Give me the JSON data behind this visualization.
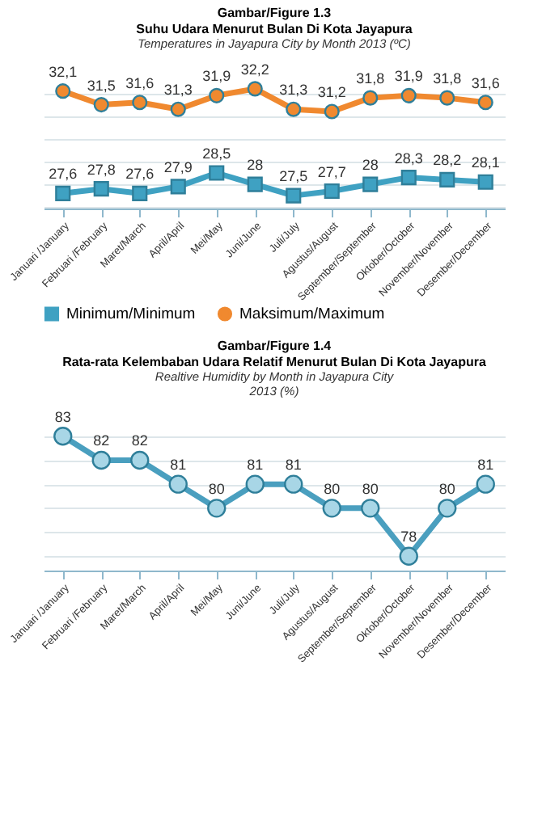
{
  "chart_data": [
    {
      "type": "line",
      "title": "Gambar/Figure 1.3",
      "subtitle": "Suhu Udara Menurut Bulan Di Kota Jayapura",
      "annotations": [
        "Temperatures in  Jayapura City by Month 2013 (ºC)"
      ],
      "categories": [
        "Januari /January",
        "Februari /February",
        "Maret/March",
        "April/April",
        "Mei/May",
        "Juni/June",
        "Juli/July",
        "Agustus/August",
        "September/September",
        "Oktober/October",
        "November/November",
        "Desember/December"
      ],
      "series": [
        {
          "name": "Minimum/Minimum",
          "color": "#3fa1c2",
          "marker": "square",
          "values": [
            27.6,
            27.8,
            27.6,
            27.9,
            28.5,
            28,
            27.5,
            27.7,
            28,
            28.3,
            28.2,
            28.1
          ],
          "value_labels": [
            "27,6",
            "27,8",
            "27,6",
            "27,9",
            "28,5",
            "28",
            "27,5",
            "27,7",
            "28",
            "28,3",
            "28,2",
            "28,1"
          ]
        },
        {
          "name": "Maksimum/Maximum",
          "color": "#f0892f",
          "marker": "circle",
          "values": [
            32.1,
            31.5,
            31.6,
            31.3,
            31.9,
            32.2,
            31.3,
            31.2,
            31.8,
            31.9,
            31.8,
            31.6
          ],
          "value_labels": [
            "32,1",
            "31,5",
            "31,6",
            "31,3",
            "31,9",
            "32,2",
            "31,3",
            "31,2",
            "31,8",
            "31,9",
            "31,8",
            "31,6"
          ]
        }
      ],
      "grid": "y",
      "legend": "bottom",
      "tick_labels": "x"
    },
    {
      "type": "line",
      "title": "Gambar/Figure 1.4",
      "subtitle": "Rata-rata Kelembaban Udara Relatif Menurut Bulan Di Kota Jayapura",
      "annotations": [
        "Realtive Humidity by Month in Jayapura City",
        "2013 (%)"
      ],
      "categories": [
        "Januari /January",
        "Februari /February",
        "Maret/March",
        "April/April",
        "Mei/May",
        "Juni/June",
        "Juli/July",
        "Agustus/August",
        "September/September",
        "Oktober/October",
        "November/November",
        "Desember/December"
      ],
      "values": [
        83,
        82,
        82,
        81,
        80,
        81,
        81,
        80,
        80,
        78,
        80,
        81
      ],
      "color": "#4a9fbf",
      "marker": "circle",
      "data_labels": true,
      "grid": "y",
      "tick_labels": "x"
    }
  ]
}
